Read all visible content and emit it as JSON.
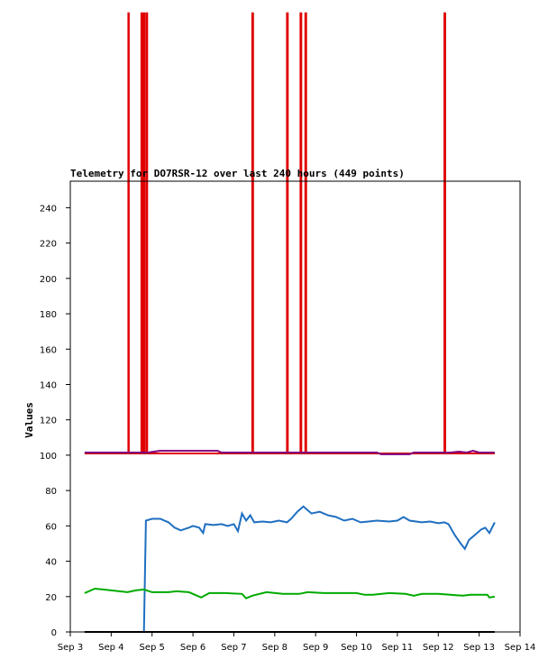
{
  "chart_data": {
    "type": "line",
    "title": "Telemetry for DO7RSR-12 over last 240 hours (449 points)",
    "xlabel": "",
    "ylabel": "Values",
    "grid": false,
    "legend": "none",
    "x_unit": "days (September)",
    "xlim": [
      3,
      14
    ],
    "ylim": [
      0,
      255
    ],
    "x_ticks": [
      3,
      4,
      5,
      6,
      7,
      8,
      9,
      10,
      11,
      12,
      13,
      14
    ],
    "x_tick_labels": [
      "Sep 3",
      "Sep 4",
      "Sep 5",
      "Sep 6",
      "Sep 7",
      "Sep 8",
      "Sep 9",
      "Sep 10",
      "Sep 11",
      "Sep 12",
      "Sep 13",
      "Sep 14"
    ],
    "y_ticks": [
      0,
      20,
      40,
      60,
      80,
      100,
      120,
      140,
      160,
      180,
      200,
      220,
      240
    ],
    "series": [
      {
        "color": "#e00000",
        "points": [
          [
            3.35,
            101
          ],
          [
            4.42,
            101
          ],
          [
            4.42,
            350
          ],
          [
            4.43,
            350
          ],
          [
            4.43,
            101
          ],
          [
            4.74,
            101
          ],
          [
            4.74,
            350
          ],
          [
            4.76,
            350
          ],
          [
            4.76,
            101
          ],
          [
            4.79,
            101
          ],
          [
            4.79,
            350
          ],
          [
            4.82,
            350
          ],
          [
            4.82,
            101
          ],
          [
            4.87,
            101
          ],
          [
            4.87,
            350
          ],
          [
            4.88,
            350
          ],
          [
            4.88,
            101
          ],
          [
            7.45,
            101
          ],
          [
            7.45,
            350
          ],
          [
            7.47,
            350
          ],
          [
            7.47,
            101
          ],
          [
            8.3,
            101
          ],
          [
            8.3,
            350
          ],
          [
            8.32,
            350
          ],
          [
            8.32,
            101
          ],
          [
            8.63,
            101
          ],
          [
            8.63,
            350
          ],
          [
            8.65,
            350
          ],
          [
            8.65,
            101
          ],
          [
            8.75,
            101
          ],
          [
            8.75,
            350
          ],
          [
            8.77,
            350
          ],
          [
            8.77,
            101
          ],
          [
            12.15,
            101
          ],
          [
            12.15,
            350
          ],
          [
            12.17,
            350
          ],
          [
            12.17,
            101
          ],
          [
            13.38,
            101
          ]
        ]
      },
      {
        "color": "#800080",
        "points": [
          [
            3.35,
            101.5
          ],
          [
            4.9,
            101.5
          ],
          [
            5.2,
            102.5
          ],
          [
            6.6,
            102.5
          ],
          [
            6.7,
            101.5
          ],
          [
            10.5,
            101.5
          ],
          [
            10.6,
            100.5
          ],
          [
            11.3,
            100.5
          ],
          [
            11.4,
            101.5
          ],
          [
            12.3,
            101.5
          ],
          [
            12.5,
            102
          ],
          [
            12.7,
            101.5
          ],
          [
            12.85,
            102.5
          ],
          [
            13.0,
            101.5
          ],
          [
            13.38,
            101.5
          ]
        ]
      },
      {
        "color": "#1f6fc0",
        "points": [
          [
            3.35,
            0
          ],
          [
            4.8,
            0
          ],
          [
            4.85,
            63
          ],
          [
            5.0,
            64
          ],
          [
            5.2,
            64
          ],
          [
            5.4,
            62
          ],
          [
            5.55,
            59
          ],
          [
            5.7,
            57.5
          ],
          [
            5.9,
            59
          ],
          [
            6.0,
            60
          ],
          [
            6.15,
            59
          ],
          [
            6.25,
            56
          ],
          [
            6.3,
            61
          ],
          [
            6.5,
            60.5
          ],
          [
            6.7,
            61
          ],
          [
            6.85,
            60
          ],
          [
            7.0,
            61
          ],
          [
            7.1,
            57
          ],
          [
            7.2,
            67
          ],
          [
            7.3,
            63
          ],
          [
            7.4,
            66
          ],
          [
            7.5,
            62
          ],
          [
            7.7,
            62.5
          ],
          [
            7.9,
            62
          ],
          [
            8.1,
            63
          ],
          [
            8.3,
            62
          ],
          [
            8.4,
            64
          ],
          [
            8.55,
            68
          ],
          [
            8.7,
            71
          ],
          [
            8.8,
            69
          ],
          [
            8.9,
            67
          ],
          [
            9.1,
            68
          ],
          [
            9.3,
            66
          ],
          [
            9.5,
            65
          ],
          [
            9.7,
            63
          ],
          [
            9.9,
            64
          ],
          [
            10.1,
            62
          ],
          [
            10.3,
            62.5
          ],
          [
            10.5,
            63
          ],
          [
            10.8,
            62.5
          ],
          [
            11.0,
            63
          ],
          [
            11.15,
            65
          ],
          [
            11.3,
            63
          ],
          [
            11.6,
            62
          ],
          [
            11.8,
            62.5
          ],
          [
            12.0,
            61.5
          ],
          [
            12.15,
            62
          ],
          [
            12.25,
            61
          ],
          [
            12.4,
            55
          ],
          [
            12.55,
            50
          ],
          [
            12.65,
            47
          ],
          [
            12.75,
            52
          ],
          [
            12.9,
            55
          ],
          [
            13.05,
            58
          ],
          [
            13.15,
            59
          ],
          [
            13.25,
            56
          ],
          [
            13.38,
            62
          ]
        ]
      },
      {
        "color": "#00aa00",
        "points": [
          [
            3.35,
            22
          ],
          [
            3.6,
            24.5
          ],
          [
            3.8,
            24
          ],
          [
            4.0,
            23.5
          ],
          [
            4.2,
            23
          ],
          [
            4.4,
            22.5
          ],
          [
            4.6,
            23.5
          ],
          [
            4.8,
            24
          ],
          [
            5.0,
            22.5
          ],
          [
            5.4,
            22.5
          ],
          [
            5.6,
            23
          ],
          [
            5.9,
            22.5
          ],
          [
            6.2,
            19.5
          ],
          [
            6.4,
            22
          ],
          [
            6.6,
            22
          ],
          [
            6.8,
            22
          ],
          [
            7.2,
            21.5
          ],
          [
            7.3,
            19
          ],
          [
            7.45,
            20.5
          ],
          [
            7.8,
            22.5
          ],
          [
            8.2,
            21.5
          ],
          [
            8.6,
            21.5
          ],
          [
            8.8,
            22.5
          ],
          [
            9.2,
            22
          ],
          [
            9.6,
            22
          ],
          [
            10.0,
            22
          ],
          [
            10.2,
            21
          ],
          [
            10.4,
            21
          ],
          [
            10.8,
            22
          ],
          [
            11.2,
            21.5
          ],
          [
            11.4,
            20.5
          ],
          [
            11.6,
            21.5
          ],
          [
            12.0,
            21.5
          ],
          [
            12.3,
            21
          ],
          [
            12.6,
            20.5
          ],
          [
            12.8,
            21
          ],
          [
            13.2,
            21
          ],
          [
            13.25,
            19.5
          ],
          [
            13.38,
            20
          ]
        ]
      },
      {
        "color": "#000000",
        "points": [
          [
            3.35,
            0
          ],
          [
            13.38,
            0
          ]
        ]
      }
    ]
  }
}
